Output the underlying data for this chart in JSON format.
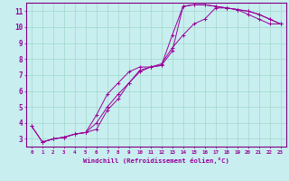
{
  "xlabel": "Windchill (Refroidissement éolien,°C)",
  "bg_color": "#c8eef0",
  "grid_color": "#a0d8c8",
  "line_color": "#990099",
  "spine_color": "#800080",
  "xlim": [
    -0.5,
    23.5
  ],
  "ylim": [
    2.5,
    11.5
  ],
  "xtick_vals": [
    0,
    1,
    2,
    3,
    4,
    5,
    6,
    7,
    8,
    9,
    10,
    11,
    12,
    13,
    14,
    15,
    16,
    17,
    18,
    19,
    20,
    21,
    22,
    23
  ],
  "ytick_vals": [
    3,
    4,
    5,
    6,
    7,
    8,
    9,
    10,
    11
  ],
  "series": [
    {
      "x": [
        0,
        1,
        2,
        3,
        4,
        5,
        6,
        7,
        8,
        9,
        10,
        11,
        12,
        13,
        14,
        15,
        16,
        17,
        18,
        19,
        20,
        21,
        22,
        23
      ],
      "y": [
        3.8,
        2.8,
        3.0,
        3.1,
        3.3,
        3.4,
        3.6,
        4.8,
        5.5,
        6.5,
        7.3,
        7.5,
        7.6,
        8.5,
        11.3,
        11.4,
        11.4,
        11.3,
        11.2,
        11.1,
        11.0,
        10.8,
        10.5,
        10.2
      ]
    },
    {
      "x": [
        0,
        1,
        2,
        3,
        4,
        5,
        6,
        7,
        8,
        9,
        10,
        11,
        12,
        13,
        14,
        15,
        16,
        17,
        18,
        19,
        20,
        21,
        22,
        23
      ],
      "y": [
        3.8,
        2.8,
        3.0,
        3.1,
        3.3,
        3.4,
        4.5,
        5.8,
        6.5,
        7.2,
        7.5,
        7.5,
        7.6,
        9.5,
        11.3,
        11.4,
        11.4,
        11.3,
        11.2,
        11.1,
        11.0,
        10.8,
        10.5,
        10.2
      ]
    },
    {
      "x": [
        1,
        2,
        3,
        4,
        5,
        6,
        7,
        8,
        9,
        10,
        11,
        12,
        13,
        14,
        15,
        16,
        17,
        18,
        19,
        20,
        21,
        22,
        23
      ],
      "y": [
        2.8,
        3.0,
        3.1,
        3.3,
        3.4,
        4.0,
        5.0,
        5.8,
        6.5,
        7.2,
        7.5,
        7.7,
        8.7,
        9.5,
        10.2,
        10.5,
        11.2,
        11.2,
        11.1,
        10.8,
        10.5,
        10.2,
        10.2
      ]
    }
  ]
}
